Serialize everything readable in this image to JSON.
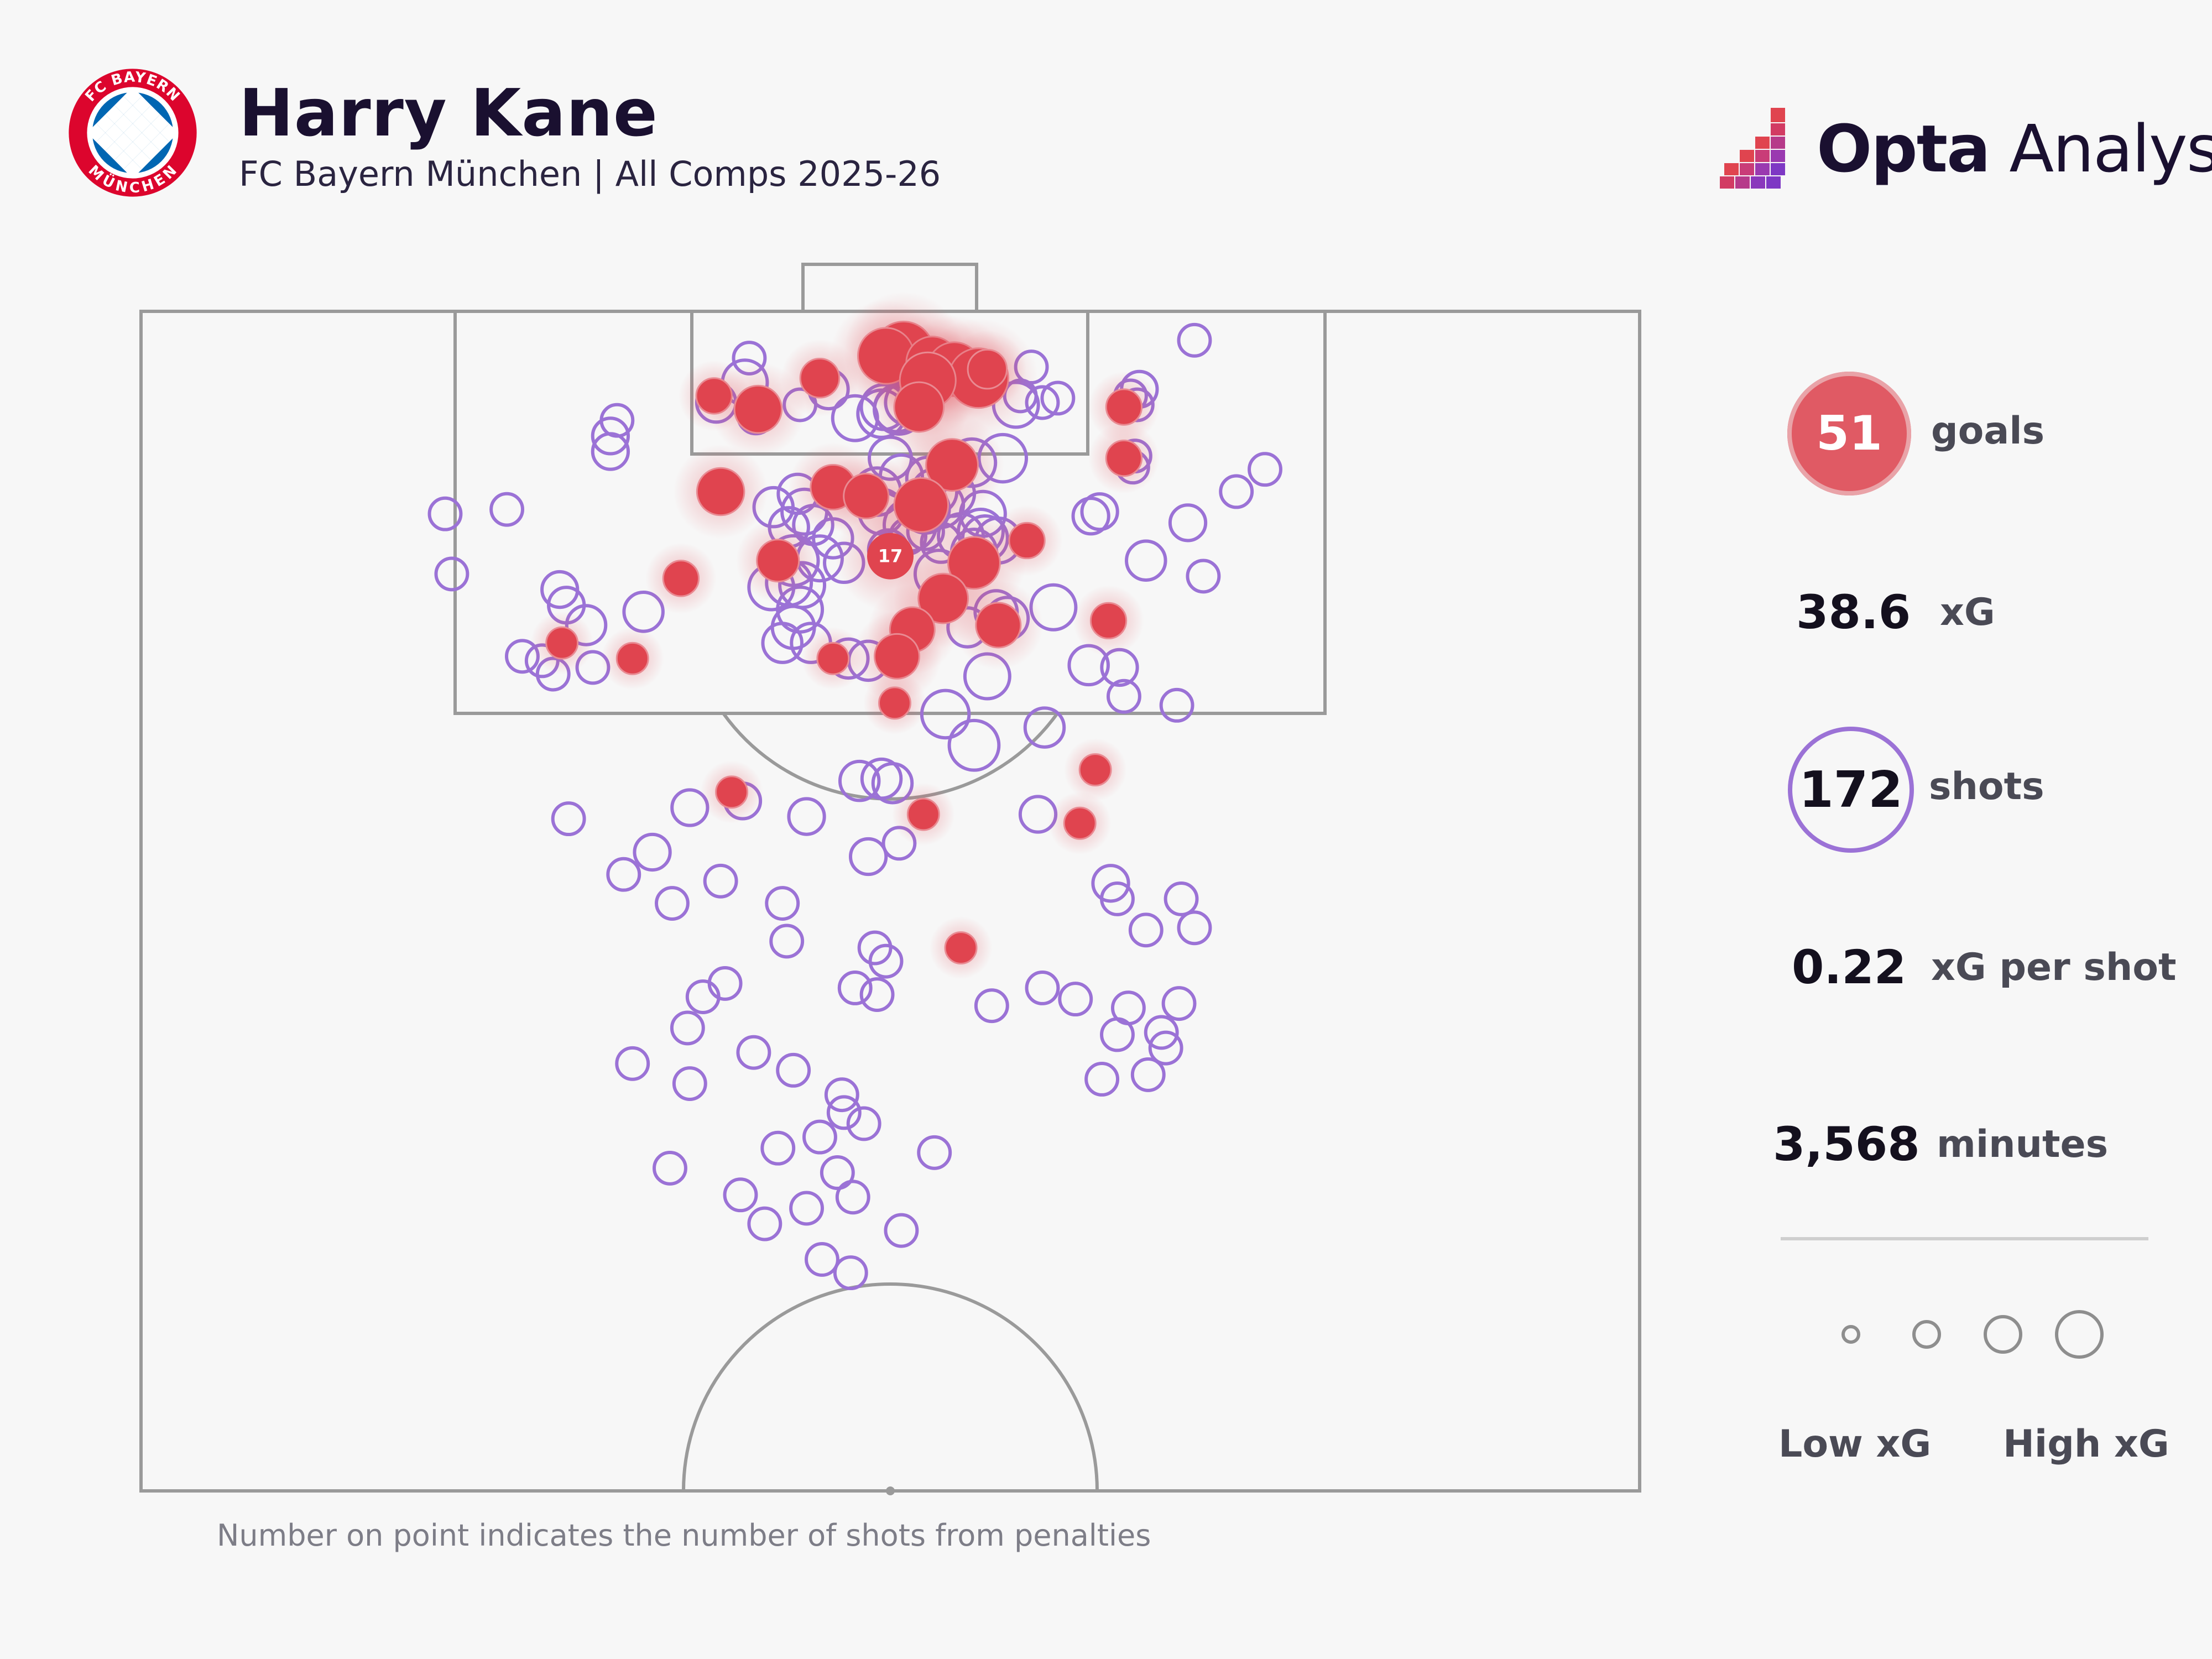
{
  "header": {
    "player_name": "Harry Kane",
    "subtitle": "FC Bayern München | All Comps 2025-26",
    "club_logo_icon": "bayern-munich-crest-icon",
    "club_logo_text_top": "FC BAYERN",
    "club_logo_text_bottom": "MÜNCHEN",
    "brand_icon": "opta-analyst-logo-icon",
    "brand_name_bold": "Opta",
    "brand_name_light": " Analyst"
  },
  "stats": {
    "goals_value": "51",
    "goals_label": "goals",
    "xg_value": "38.6",
    "xg_label": "xG",
    "shots_value": "172",
    "shots_label": "shots",
    "xg_per_shot_value": "0.22",
    "xg_per_shot_label": "xG per shot",
    "minutes_value": "3,568",
    "minutes_label": "minutes"
  },
  "legend": {
    "low_label": "Low xG",
    "high_label": "High xG",
    "size_steps": [
      0.05,
      0.25,
      0.5,
      0.8
    ]
  },
  "footnote": "Number on point indicates the number of shots from penalties",
  "colors": {
    "goal": "#e0444f",
    "shot": "#9b72d6",
    "pitch_line": "#9a9a9a",
    "background": "#f7f7f7"
  },
  "chart_data": {
    "type": "scatter",
    "title": "Harry Kane",
    "subtitle": "FC Bayern München | All Comps 2025-26",
    "xlabel": "",
    "ylabel": "",
    "xlim": [
      0,
      68
    ],
    "ylim": [
      0,
      53
    ],
    "units": "metres (x: across pitch width, y: distance from goal line)",
    "legend": "right",
    "penalty": {
      "x": 34,
      "y": 11,
      "shots": 17,
      "label": "17"
    },
    "series": [
      {
        "name": "goals",
        "points": [
          [
            34.6,
            1.8,
            0.65
          ],
          [
            33.8,
            2.0,
            0.55
          ],
          [
            35.9,
            2.3,
            0.45
          ],
          [
            36.9,
            2.6,
            0.5
          ],
          [
            38.0,
            3.0,
            0.65
          ],
          [
            35.7,
            3.1,
            0.55
          ],
          [
            38.4,
            2.6,
            0.2
          ],
          [
            30.8,
            3.0,
            0.2
          ],
          [
            26.0,
            3.8,
            0.15
          ],
          [
            28.0,
            4.4,
            0.35
          ],
          [
            35.3,
            4.3,
            0.4
          ],
          [
            44.6,
            4.3,
            0.15
          ],
          [
            36.8,
            6.9,
            0.45
          ],
          [
            44.6,
            6.6,
            0.15
          ],
          [
            26.3,
            8.1,
            0.35
          ],
          [
            31.4,
            7.9,
            0.3
          ],
          [
            32.9,
            8.3,
            0.3
          ],
          [
            35.4,
            8.7,
            0.5
          ],
          [
            40.2,
            10.3,
            0.15
          ],
          [
            28.9,
            11.2,
            0.25
          ],
          [
            24.5,
            12.0,
            0.15
          ],
          [
            37.8,
            11.3,
            0.45
          ],
          [
            36.4,
            12.9,
            0.4
          ],
          [
            38.9,
            14.1,
            0.3
          ],
          [
            35.0,
            14.3,
            0.3
          ],
          [
            34.3,
            15.5,
            0.3
          ],
          [
            43.9,
            13.9,
            0.15
          ],
          [
            19.1,
            14.9,
            0.1
          ],
          [
            22.3,
            15.6,
            0.1
          ],
          [
            31.4,
            15.6,
            0.1
          ],
          [
            34.2,
            17.6,
            0.1
          ],
          [
            26.8,
            21.6,
            0.1
          ],
          [
            43.3,
            20.6,
            0.1
          ],
          [
            35.5,
            22.6,
            0.1
          ],
          [
            42.6,
            23.0,
            0.1
          ],
          [
            37.2,
            28.6,
            0.1
          ]
        ]
      },
      {
        "name": "shots",
        "points": [
          [
            27.6,
            2.1,
            0.1
          ],
          [
            40.4,
            2.5,
            0.1
          ],
          [
            27.4,
            3.2,
            0.3
          ],
          [
            31.2,
            3.5,
            0.2
          ],
          [
            39.9,
            3.8,
            0.1
          ],
          [
            41.6,
            3.9,
            0.1
          ],
          [
            40.9,
            4.1,
            0.1
          ],
          [
            29.9,
            4.2,
            0.1
          ],
          [
            26.1,
            4.1,
            0.2
          ],
          [
            33.7,
            4.3,
            0.3
          ],
          [
            34.3,
            4.4,
            0.3
          ],
          [
            34.8,
            4.1,
            0.3
          ],
          [
            39.7,
            4.2,
            0.3
          ],
          [
            32.4,
            4.8,
            0.3
          ],
          [
            33.6,
            4.6,
            0.35
          ],
          [
            34.4,
            4.4,
            0.4
          ],
          [
            27.9,
            4.7,
            0.15
          ],
          [
            45.3,
            3.5,
            0.15
          ],
          [
            44.9,
            3.8,
            0.1
          ],
          [
            45.2,
            4.2,
            0.1
          ],
          [
            47.8,
            1.3,
            0.1
          ],
          [
            21.6,
            4.9,
            0.1
          ],
          [
            21.3,
            5.6,
            0.15
          ],
          [
            21.3,
            6.3,
            0.15
          ],
          [
            51.0,
            7.1,
            0.1
          ],
          [
            45.1,
            6.5,
            0.1
          ],
          [
            45.0,
            7.0,
            0.1
          ],
          [
            34.0,
            6.6,
            0.25
          ],
          [
            34.5,
            7.4,
            0.25
          ],
          [
            35.7,
            7.5,
            0.25
          ],
          [
            36.0,
            8.1,
            0.3
          ],
          [
            35.6,
            8.9,
            0.35
          ],
          [
            37.7,
            6.8,
            0.35
          ],
          [
            39.1,
            6.6,
            0.35
          ],
          [
            33.4,
            8.1,
            0.35
          ],
          [
            34.9,
            9.6,
            0.45
          ],
          [
            36.8,
            8.2,
            0.3
          ],
          [
            36.3,
            8.7,
            0.3
          ],
          [
            33.6,
            9.0,
            0.3
          ],
          [
            30.1,
            9.0,
            0.3
          ],
          [
            29.8,
            8.2,
            0.2
          ],
          [
            28.7,
            8.8,
            0.2
          ],
          [
            29.4,
            9.7,
            0.2
          ],
          [
            30.5,
            9.6,
            0.2
          ],
          [
            31.4,
            10.2,
            0.2
          ],
          [
            38.2,
            9.1,
            0.3
          ],
          [
            43.1,
            9.2,
            0.15
          ],
          [
            43.5,
            9.0,
            0.15
          ],
          [
            16.6,
            8.9,
            0.1
          ],
          [
            13.8,
            9.1,
            0.1
          ],
          [
            47.5,
            9.5,
            0.15
          ],
          [
            49.7,
            8.1,
            0.1
          ],
          [
            34.8,
            10.1,
            0.15
          ],
          [
            35.6,
            9.9,
            0.15
          ],
          [
            37.2,
            10.1,
            0.3
          ],
          [
            38.1,
            9.9,
            0.3
          ],
          [
            36.3,
            10.4,
            0.2
          ],
          [
            33.9,
            10.7,
            0.2
          ],
          [
            29.6,
            11.2,
            0.4
          ],
          [
            29.4,
            12.2,
            0.3
          ],
          [
            30.8,
            11.1,
            0.3
          ],
          [
            31.9,
            11.3,
            0.2
          ],
          [
            36.2,
            11.8,
            0.35
          ],
          [
            37.8,
            10.8,
            0.3
          ],
          [
            38.3,
            10.2,
            0.3
          ],
          [
            38.9,
            10.3,
            0.3
          ],
          [
            28.6,
            12.4,
            0.3
          ],
          [
            30.0,
            12.3,
            0.3
          ],
          [
            45.6,
            11.2,
            0.2
          ],
          [
            48.2,
            11.9,
            0.1
          ],
          [
            19.0,
            12.5,
            0.15
          ],
          [
            14.1,
            11.8,
            0.1
          ],
          [
            20.2,
            14.1,
            0.2
          ],
          [
            19.3,
            13.2,
            0.15
          ],
          [
            22.8,
            13.5,
            0.2
          ],
          [
            29.9,
            13.4,
            0.3
          ],
          [
            29.6,
            14.2,
            0.25
          ],
          [
            29.1,
            14.9,
            0.2
          ],
          [
            30.4,
            14.9,
            0.2
          ],
          [
            38.8,
            13.5,
            0.25
          ],
          [
            39.3,
            13.8,
            0.25
          ],
          [
            37.5,
            14.2,
            0.2
          ],
          [
            41.4,
            13.3,
            0.3
          ],
          [
            32.1,
            15.6,
            0.2
          ],
          [
            33.0,
            15.7,
            0.2
          ],
          [
            43.0,
            15.9,
            0.2
          ],
          [
            44.4,
            16.0,
            0.15
          ],
          [
            18.2,
            15.7,
            0.1
          ],
          [
            17.3,
            15.5,
            0.1
          ],
          [
            18.7,
            16.3,
            0.1
          ],
          [
            20.5,
            16.0,
            0.1
          ],
          [
            38.4,
            16.4,
            0.3
          ],
          [
            44.6,
            17.3,
            0.1
          ],
          [
            47.0,
            17.7,
            0.1
          ],
          [
            41.0,
            18.7,
            0.2
          ],
          [
            37.8,
            19.5,
            0.4
          ],
          [
            36.5,
            18.1,
            0.35
          ],
          [
            32.6,
            21.1,
            0.2
          ],
          [
            33.6,
            21.0,
            0.2
          ],
          [
            34.1,
            21.2,
            0.2
          ],
          [
            24.9,
            22.3,
            0.15
          ],
          [
            19.4,
            22.8,
            0.1
          ],
          [
            27.3,
            22.0,
            0.15
          ],
          [
            30.2,
            22.7,
            0.15
          ],
          [
            40.7,
            22.6,
            0.15
          ],
          [
            23.2,
            24.3,
            0.15
          ],
          [
            34.4,
            23.9,
            0.1
          ],
          [
            33.0,
            24.5,
            0.15
          ],
          [
            21.9,
            25.3,
            0.1
          ],
          [
            26.3,
            25.6,
            0.1
          ],
          [
            29.1,
            26.6,
            0.1
          ],
          [
            24.1,
            26.6,
            0.1
          ],
          [
            44.0,
            25.7,
            0.15
          ],
          [
            44.3,
            26.4,
            0.1
          ],
          [
            47.2,
            26.4,
            0.1
          ],
          [
            29.3,
            28.3,
            0.1
          ],
          [
            33.3,
            28.6,
            0.1
          ],
          [
            33.8,
            29.2,
            0.1
          ],
          [
            45.6,
            27.8,
            0.1
          ],
          [
            47.8,
            27.7,
            0.1
          ],
          [
            25.5,
            30.8,
            0.1
          ],
          [
            42.4,
            30.9,
            0.1
          ],
          [
            44.8,
            31.3,
            0.1
          ],
          [
            47.1,
            31.1,
            0.1
          ],
          [
            24.8,
            32.2,
            0.1
          ],
          [
            22.3,
            33.8,
            0.1
          ],
          [
            24.9,
            34.7,
            0.1
          ],
          [
            27.8,
            33.3,
            0.1
          ],
          [
            32.4,
            30.4,
            0.1
          ],
          [
            33.4,
            30.7,
            0.1
          ],
          [
            29.6,
            34.1,
            0.1
          ],
          [
            31.8,
            35.2,
            0.1
          ],
          [
            44.3,
            32.5,
            0.1
          ],
          [
            46.3,
            32.4,
            0.1
          ],
          [
            46.5,
            33.1,
            0.1
          ],
          [
            45.7,
            34.3,
            0.1
          ],
          [
            43.6,
            34.5,
            0.1
          ],
          [
            31.9,
            36.0,
            0.1
          ],
          [
            32.8,
            36.5,
            0.1
          ],
          [
            36.0,
            37.8,
            0.1
          ],
          [
            28.9,
            37.6,
            0.1
          ],
          [
            31.6,
            38.7,
            0.1
          ],
          [
            30.8,
            37.1,
            0.1
          ],
          [
            24.0,
            38.5,
            0.1
          ],
          [
            27.2,
            39.7,
            0.1
          ],
          [
            30.2,
            40.3,
            0.1
          ],
          [
            32.3,
            39.8,
            0.1
          ],
          [
            28.3,
            41.0,
            0.1
          ],
          [
            34.5,
            41.3,
            0.1
          ],
          [
            30.9,
            42.6,
            0.1
          ],
          [
            32.2,
            43.2,
            0.1
          ],
          [
            38.6,
            31.2,
            0.1
          ],
          [
            26.5,
            30.2,
            0.1
          ],
          [
            40.9,
            30.4,
            0.1
          ]
        ]
      }
    ]
  }
}
